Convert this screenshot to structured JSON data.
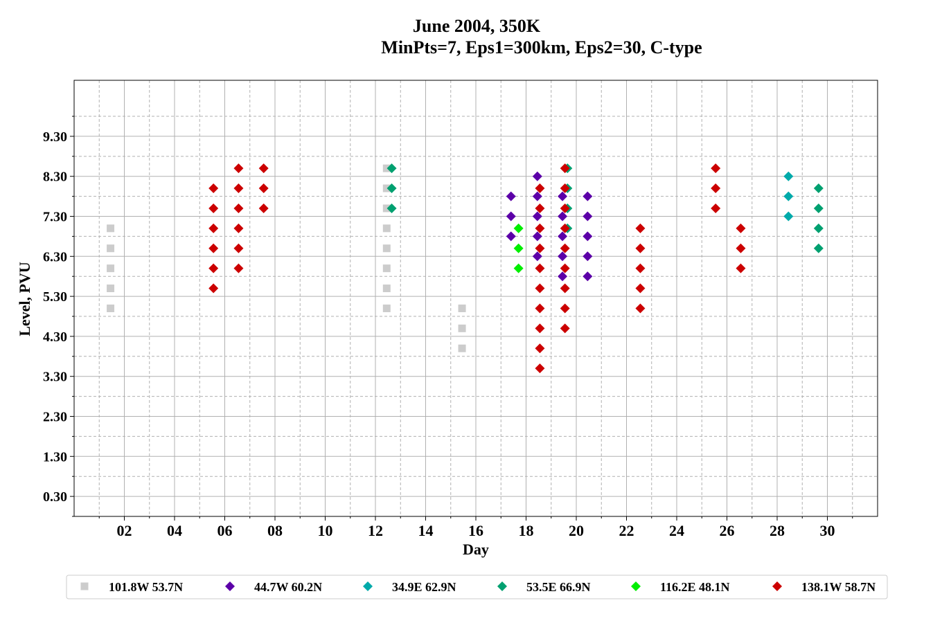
{
  "chart_data": {
    "type": "scatter",
    "title": "June 2004, 350K",
    "subtitle": "MinPts=7, Eps1=300km, Eps2=30, C-type",
    "xlabel": "Day",
    "ylabel": "Level, PVU",
    "xlim": [
      0,
      32
    ],
    "ylim": [
      -0.2,
      10.7
    ],
    "x_ticks": [
      2,
      4,
      6,
      8,
      10,
      12,
      14,
      16,
      18,
      20,
      22,
      24,
      26,
      28,
      30
    ],
    "x_tick_labels": [
      "02",
      "04",
      "06",
      "08",
      "10",
      "12",
      "14",
      "16",
      "18",
      "20",
      "22",
      "24",
      "26",
      "28",
      "30"
    ],
    "y_ticks": [
      0.3,
      1.3,
      2.3,
      3.3,
      4.3,
      5.3,
      6.3,
      7.3,
      8.3,
      9.3
    ],
    "y_tick_labels": [
      "0.30",
      "1.30",
      "2.30",
      "3.30",
      "4.30",
      "5.30",
      "6.30",
      "7.30",
      "8.30",
      "9.30"
    ],
    "grid": true,
    "legend_position": "bottom",
    "series": [
      {
        "name": "101.8W 53.7N",
        "marker": "square",
        "color": "#cccccc",
        "points": [
          [
            1.45,
            5.0
          ],
          [
            1.45,
            5.5
          ],
          [
            1.45,
            6.0
          ],
          [
            1.45,
            6.5
          ],
          [
            1.45,
            7.0
          ],
          [
            12.45,
            5.0
          ],
          [
            12.45,
            5.5
          ],
          [
            12.45,
            6.0
          ],
          [
            12.45,
            6.5
          ],
          [
            12.45,
            7.0
          ],
          [
            12.45,
            7.5
          ],
          [
            12.45,
            8.0
          ],
          [
            12.45,
            8.5
          ],
          [
            15.45,
            4.0
          ],
          [
            15.45,
            4.5
          ],
          [
            15.45,
            5.0
          ]
        ]
      },
      {
        "name": "44.7W 60.2N",
        "marker": "diamond",
        "color": "#5c00a8",
        "points": [
          [
            17.4,
            6.8
          ],
          [
            17.4,
            7.3
          ],
          [
            17.4,
            7.8
          ],
          [
            18.45,
            6.3
          ],
          [
            18.45,
            6.8
          ],
          [
            18.45,
            7.3
          ],
          [
            18.45,
            7.8
          ],
          [
            18.45,
            8.3
          ],
          [
            19.45,
            5.8
          ],
          [
            19.45,
            6.3
          ],
          [
            19.45,
            6.8
          ],
          [
            19.45,
            7.3
          ],
          [
            19.45,
            7.8
          ],
          [
            20.45,
            5.8
          ],
          [
            20.45,
            6.3
          ],
          [
            20.45,
            6.8
          ],
          [
            20.45,
            7.3
          ],
          [
            20.45,
            7.8
          ]
        ]
      },
      {
        "name": "34.9E 62.9N",
        "marker": "diamond",
        "color": "#00aaaa",
        "points": [
          [
            28.45,
            7.3
          ],
          [
            28.45,
            7.8
          ],
          [
            28.45,
            8.3
          ]
        ]
      },
      {
        "name": "53.5E 66.9N",
        "marker": "diamond",
        "color": "#00a070",
        "points": [
          [
            12.65,
            7.5
          ],
          [
            12.65,
            8.0
          ],
          [
            12.65,
            8.5
          ],
          [
            19.65,
            7.0
          ],
          [
            19.65,
            7.5
          ],
          [
            19.65,
            8.0
          ],
          [
            19.65,
            8.5
          ],
          [
            29.65,
            6.5
          ],
          [
            29.65,
            7.0
          ],
          [
            29.65,
            7.5
          ],
          [
            29.65,
            8.0
          ]
        ]
      },
      {
        "name": "116.2E 48.1N",
        "marker": "diamond",
        "color": "#00ee00",
        "points": [
          [
            17.7,
            6.0
          ],
          [
            17.7,
            6.5
          ],
          [
            17.7,
            7.0
          ]
        ]
      },
      {
        "name": "138.1W 58.7N",
        "marker": "diamond",
        "color": "#cc0000",
        "points": [
          [
            5.55,
            5.5
          ],
          [
            5.55,
            6.0
          ],
          [
            5.55,
            6.5
          ],
          [
            5.55,
            7.0
          ],
          [
            5.55,
            7.5
          ],
          [
            5.55,
            8.0
          ],
          [
            6.55,
            6.0
          ],
          [
            6.55,
            6.5
          ],
          [
            6.55,
            7.0
          ],
          [
            6.55,
            7.5
          ],
          [
            6.55,
            8.0
          ],
          [
            6.55,
            8.5
          ],
          [
            7.55,
            7.5
          ],
          [
            7.55,
            8.0
          ],
          [
            7.55,
            8.5
          ],
          [
            18.55,
            3.5
          ],
          [
            18.55,
            4.0
          ],
          [
            18.55,
            4.5
          ],
          [
            18.55,
            5.0
          ],
          [
            18.55,
            5.5
          ],
          [
            18.55,
            6.0
          ],
          [
            18.55,
            6.5
          ],
          [
            18.55,
            7.0
          ],
          [
            18.55,
            7.5
          ],
          [
            18.55,
            8.0
          ],
          [
            19.55,
            4.5
          ],
          [
            19.55,
            5.0
          ],
          [
            19.55,
            5.5
          ],
          [
            19.55,
            6.0
          ],
          [
            19.55,
            6.5
          ],
          [
            19.55,
            7.0
          ],
          [
            19.55,
            7.5
          ],
          [
            19.55,
            8.0
          ],
          [
            19.55,
            8.5
          ],
          [
            22.55,
            5.0
          ],
          [
            22.55,
            5.5
          ],
          [
            22.55,
            6.0
          ],
          [
            22.55,
            6.5
          ],
          [
            22.55,
            7.0
          ],
          [
            25.55,
            7.5
          ],
          [
            25.55,
            8.0
          ],
          [
            25.55,
            8.5
          ],
          [
            26.55,
            6.0
          ],
          [
            26.55,
            6.5
          ],
          [
            26.55,
            7.0
          ]
        ]
      }
    ]
  }
}
